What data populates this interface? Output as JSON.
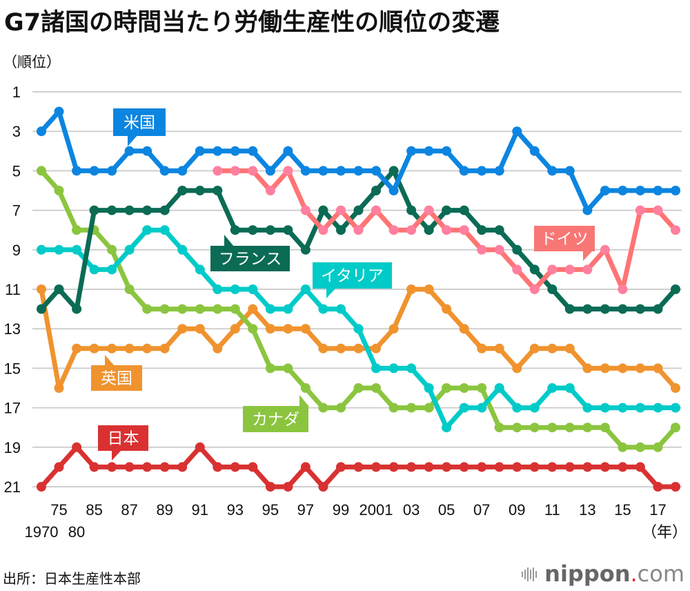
{
  "header": {
    "title": "G7諸国の時間当たり労働生産性の順位の変遷",
    "y_unit": "（順位）",
    "x_unit": "（年）"
  },
  "footer": {
    "source": "出所：日本生産性本部",
    "logo_main": "nippon",
    "logo_dot": ".",
    "logo_suffix": "com",
    "logo_accent": "#e8202a"
  },
  "chart_data": {
    "type": "line",
    "title": "G7諸国の時間当たり労働生産性の順位の変遷",
    "xlabel": "（年）",
    "ylabel": "（順位）",
    "y_inverted": true,
    "ylim": [
      1,
      21
    ],
    "grid": true,
    "yticks": [
      "1",
      "3",
      "5",
      "7",
      "9",
      "11",
      "13",
      "15",
      "17",
      "19",
      "21"
    ],
    "ytick_values": [
      1,
      3,
      5,
      7,
      9,
      11,
      13,
      15,
      17,
      19,
      21
    ],
    "x": [
      1970,
      1975,
      1980,
      1985,
      1986,
      1987,
      1988,
      1989,
      1990,
      1991,
      1992,
      1993,
      1994,
      1995,
      1996,
      1997,
      1998,
      1999,
      2000,
      2001,
      2002,
      2003,
      2004,
      2005,
      2006,
      2007,
      2008,
      2009,
      2010,
      2011,
      2012,
      2013,
      2014,
      2015,
      2016,
      2017,
      2018
    ],
    "xticks_upper": [
      {
        "year": 1975,
        "label": "75"
      },
      {
        "year": 1985,
        "label": "85"
      },
      {
        "year": 1987,
        "label": "87"
      },
      {
        "year": 1989,
        "label": "89"
      },
      {
        "year": 1991,
        "label": "91"
      },
      {
        "year": 1993,
        "label": "93"
      },
      {
        "year": 1995,
        "label": "95"
      },
      {
        "year": 1997,
        "label": "97"
      },
      {
        "year": 1999,
        "label": "99"
      },
      {
        "year": 2001,
        "label": "2001"
      },
      {
        "year": 2003,
        "label": "03"
      },
      {
        "year": 2005,
        "label": "05"
      },
      {
        "year": 2007,
        "label": "07"
      },
      {
        "year": 2009,
        "label": "09"
      },
      {
        "year": 2011,
        "label": "11"
      },
      {
        "year": 2013,
        "label": "13"
      },
      {
        "year": 2015,
        "label": "15"
      },
      {
        "year": 2017,
        "label": "17"
      }
    ],
    "xticks_lower": [
      {
        "year": 1970,
        "label": "1970"
      },
      {
        "year": 1980,
        "label": "80"
      }
    ],
    "series": [
      {
        "name": "米国",
        "key": "usa",
        "line_color": "#0c85e0",
        "dot_color": "#0c85e0",
        "label_color": "#0c85e0",
        "values": [
          3,
          2,
          5,
          5,
          5,
          4,
          4,
          5,
          5,
          4,
          4,
          4,
          4,
          5,
          4,
          5,
          5,
          5,
          5,
          5,
          6,
          4,
          4,
          4,
          5,
          5,
          5,
          3,
          4,
          5,
          5,
          7,
          6,
          6,
          6,
          6,
          6
        ]
      },
      {
        "name": "ドイツ",
        "key": "germany",
        "line_color": "#ff7474",
        "dot_color": "#ff7f9e",
        "label_color": "#f87775",
        "values": [
          null,
          null,
          null,
          null,
          null,
          null,
          null,
          null,
          null,
          null,
          5,
          5,
          5,
          6,
          5,
          7,
          8,
          7,
          8,
          7,
          8,
          8,
          7,
          8,
          8,
          9,
          9,
          10,
          11,
          10,
          10,
          10,
          9,
          11,
          7,
          7,
          8
        ]
      },
      {
        "name": "フランス",
        "key": "france",
        "line_color": "#0b6b55",
        "dot_color": "#0b6b55",
        "label_color": "#0b6b55",
        "values": [
          12,
          11,
          12,
          7,
          7,
          7,
          7,
          7,
          6,
          6,
          6,
          8,
          8,
          8,
          8,
          9,
          7,
          8,
          7,
          6,
          5,
          7,
          8,
          7,
          7,
          8,
          8,
          9,
          10,
          11,
          12,
          12,
          12,
          12,
          12,
          12,
          11
        ]
      },
      {
        "name": "イタリア",
        "key": "italy",
        "line_color": "#00cbc8",
        "dot_color": "#00cbc8",
        "label_color": "#00cbc8",
        "values": [
          9,
          9,
          9,
          10,
          10,
          9,
          8,
          8,
          9,
          10,
          11,
          11,
          11,
          12,
          12,
          11,
          12,
          12,
          13,
          15,
          15,
          15,
          16,
          18,
          17,
          17,
          16,
          17,
          17,
          16,
          16,
          17,
          17,
          17,
          17,
          17,
          17
        ]
      },
      {
        "name": "英国",
        "key": "uk",
        "line_color": "#f0932e",
        "dot_color": "#f0932e",
        "label_color": "#f0932e",
        "values": [
          11,
          16,
          14,
          14,
          14,
          14,
          14,
          14,
          13,
          13,
          14,
          13,
          12,
          13,
          13,
          13,
          14,
          14,
          14,
          14,
          13,
          11,
          11,
          12,
          13,
          14,
          14,
          15,
          14,
          14,
          14,
          15,
          15,
          15,
          15,
          15,
          16
        ]
      },
      {
        "name": "カナダ",
        "key": "canada",
        "line_color": "#8bc53f",
        "dot_color": "#8bc53f",
        "label_color": "#8bc53f",
        "values": [
          5,
          6,
          8,
          8,
          9,
          11,
          12,
          12,
          12,
          12,
          12,
          12,
          13,
          15,
          15,
          16,
          17,
          17,
          16,
          16,
          17,
          17,
          17,
          16,
          16,
          16,
          18,
          18,
          18,
          18,
          18,
          18,
          18,
          19,
          19,
          19,
          18
        ]
      },
      {
        "name": "日本",
        "key": "japan",
        "line_color": "#d93131",
        "dot_color": "#d93131",
        "label_color": "#d93131",
        "values": [
          21,
          20,
          19,
          20,
          20,
          20,
          20,
          20,
          20,
          19,
          20,
          20,
          20,
          21,
          21,
          20,
          21,
          20,
          20,
          20,
          20,
          20,
          20,
          20,
          20,
          20,
          20,
          20,
          20,
          20,
          20,
          20,
          20,
          20,
          20,
          21,
          21
        ]
      }
    ]
  }
}
